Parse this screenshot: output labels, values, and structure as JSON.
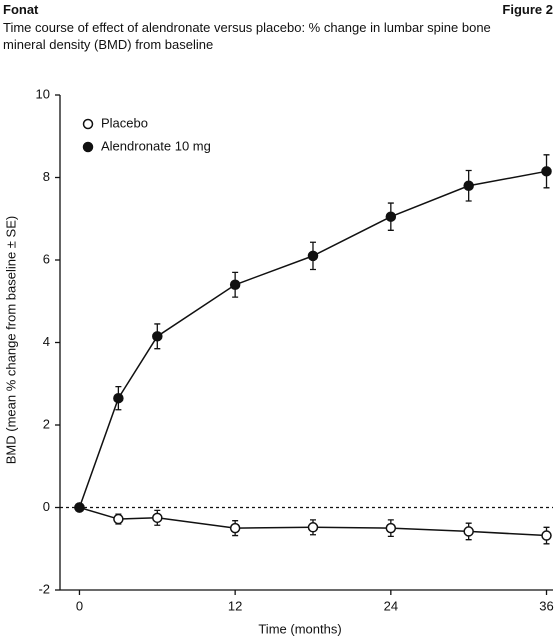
{
  "chart_data": {
    "type": "line",
    "header_left": "Fonat",
    "header_right": "Figure 2",
    "title": "Time course of effect of alendronate versus placebo: % change in lumbar spine bone mineral density (BMD) from baseline",
    "xlabel": "Time (months)",
    "ylabel": "BMD (mean % change from baseline ± SE)",
    "x": [
      0,
      3,
      6,
      12,
      18,
      24,
      30,
      36
    ],
    "series": [
      {
        "name": "Placebo",
        "color": "#111111",
        "marker": "open",
        "values": [
          0,
          -0.28,
          -0.25,
          -0.5,
          -0.48,
          -0.5,
          -0.58,
          -0.68
        ],
        "errors": [
          0,
          0.12,
          0.18,
          0.18,
          0.18,
          0.2,
          0.2,
          0.2
        ]
      },
      {
        "name": "Alendronate 10 mg",
        "color": "#111111",
        "marker": "filled",
        "values": [
          0,
          2.65,
          4.15,
          5.4,
          6.1,
          7.05,
          7.8,
          8.15
        ],
        "errors": [
          0,
          0.28,
          0.3,
          0.3,
          0.33,
          0.33,
          0.37,
          0.4
        ]
      }
    ],
    "xlim": [
      -1.5,
      36.5
    ],
    "xticks": [
      0,
      12,
      24,
      36
    ],
    "ylim": [
      -2,
      10
    ],
    "yticks": [
      -2,
      0,
      2,
      4,
      6,
      8,
      10
    ],
    "reference_line": 0,
    "legend": "upper left"
  }
}
